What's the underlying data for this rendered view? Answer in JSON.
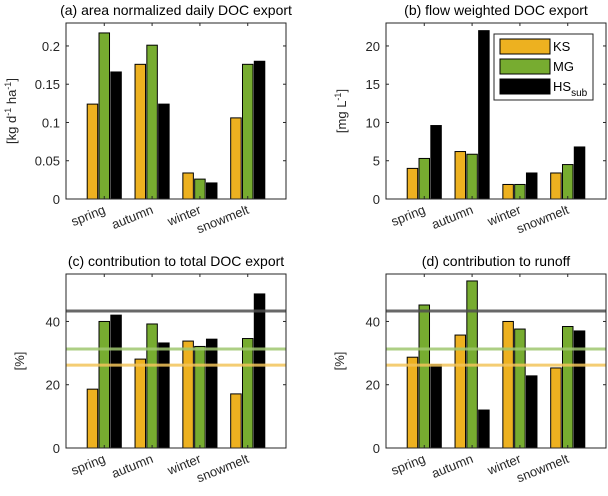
{
  "chart_data": [
    {
      "type": "bar",
      "title": "(a) area normalized daily DOC export",
      "ylabel": "[kg d^-1 ha^-1]",
      "ylabel_parts": [
        "[kg d",
        "-1",
        " ha",
        "-1",
        "]"
      ],
      "xlabel": "",
      "ylim": [
        0,
        0.23
      ],
      "yticks": [
        0,
        0.05,
        0.1,
        0.15,
        0.2
      ],
      "ytick_labels": [
        "0",
        "0.05",
        "0.1",
        "0.15",
        "0.2"
      ],
      "categories": [
        "spring",
        "autumn",
        "winter",
        "snowmelt"
      ],
      "series": [
        {
          "name": "KS",
          "values": [
            0.124,
            0.176,
            0.034,
            0.106
          ]
        },
        {
          "name": "MG",
          "values": [
            0.217,
            0.201,
            0.026,
            0.176
          ]
        },
        {
          "name": "HSsub",
          "values": [
            0.166,
            0.124,
            0.021,
            0.18
          ]
        }
      ],
      "hlines": [],
      "legend": null
    },
    {
      "type": "bar",
      "title": "(b) flow weighted DOC export",
      "ylabel": "[mg L^-1]",
      "ylabel_parts": [
        "[mg L",
        "-1",
        "]"
      ],
      "xlabel": "",
      "ylim": [
        0,
        23
      ],
      "yticks": [
        0,
        5,
        10,
        15,
        20
      ],
      "ytick_labels": [
        "0",
        "5",
        "10",
        "15",
        "20"
      ],
      "categories": [
        "spring",
        "autumn",
        "winter",
        "snowmelt"
      ],
      "series": [
        {
          "name": "KS",
          "values": [
            4.0,
            6.2,
            1.9,
            3.4
          ]
        },
        {
          "name": "MG",
          "values": [
            5.3,
            5.85,
            1.9,
            4.5
          ]
        },
        {
          "name": "HSsub",
          "values": [
            9.6,
            22.0,
            3.4,
            6.8
          ]
        }
      ],
      "hlines": [],
      "legend": "top-right"
    },
    {
      "type": "bar",
      "title": "(c) contribution to total DOC export",
      "ylabel": "[%]",
      "ylabel_parts": [
        "[%]"
      ],
      "xlabel": "",
      "ylim": [
        0,
        55
      ],
      "yticks": [
        0,
        20,
        40
      ],
      "ytick_labels": [
        "0",
        "20",
        "40"
      ],
      "categories": [
        "spring",
        "autumn",
        "winter",
        "snowmelt"
      ],
      "series": [
        {
          "name": "KS",
          "values": [
            18.6,
            28.1,
            33.8,
            17.1
          ]
        },
        {
          "name": "MG",
          "values": [
            40.0,
            39.2,
            32.1,
            34.6
          ]
        },
        {
          "name": "HSsub",
          "values": [
            42.0,
            33.2,
            34.4,
            48.7
          ]
        }
      ],
      "hlines": [
        {
          "series": "HSsub",
          "value": 43.3
        },
        {
          "series": "MG",
          "value": 31.3
        },
        {
          "series": "KS",
          "value": 26.2
        }
      ],
      "legend": null
    },
    {
      "type": "bar",
      "title": "(d) contribution to runoff",
      "ylabel": "[%]",
      "ylabel_parts": [
        "[%]"
      ],
      "xlabel": "",
      "ylim": [
        0,
        55
      ],
      "yticks": [
        0,
        20,
        40
      ],
      "ytick_labels": [
        "0",
        "20",
        "40"
      ],
      "categories": [
        "spring",
        "autumn",
        "winter",
        "snowmelt"
      ],
      "series": [
        {
          "name": "KS",
          "values": [
            28.7,
            35.7,
            40.0,
            25.3
          ]
        },
        {
          "name": "MG",
          "values": [
            45.2,
            52.8,
            37.6,
            38.4
          ]
        },
        {
          "name": "HSsub",
          "values": [
            26.4,
            12.0,
            22.8,
            37.0
          ]
        }
      ],
      "hlines": [
        {
          "series": "HSsub",
          "value": 43.3
        },
        {
          "series": "MG",
          "value": 31.3
        },
        {
          "series": "KS",
          "value": 26.2
        }
      ],
      "legend": null
    }
  ],
  "legend": {
    "entries": [
      {
        "label": "KS",
        "sub": ""
      },
      {
        "label": "MG",
        "sub": ""
      },
      {
        "label": "HS",
        "sub": "sub"
      }
    ]
  },
  "colors": {
    "KS": "#EDB120",
    "MG": "#77AC30",
    "HSsub": "#000000",
    "hline_KS": "#F2C45A",
    "hline_MG": "#9FC76E",
    "hline_HSsub": "#4D4D4D"
  }
}
